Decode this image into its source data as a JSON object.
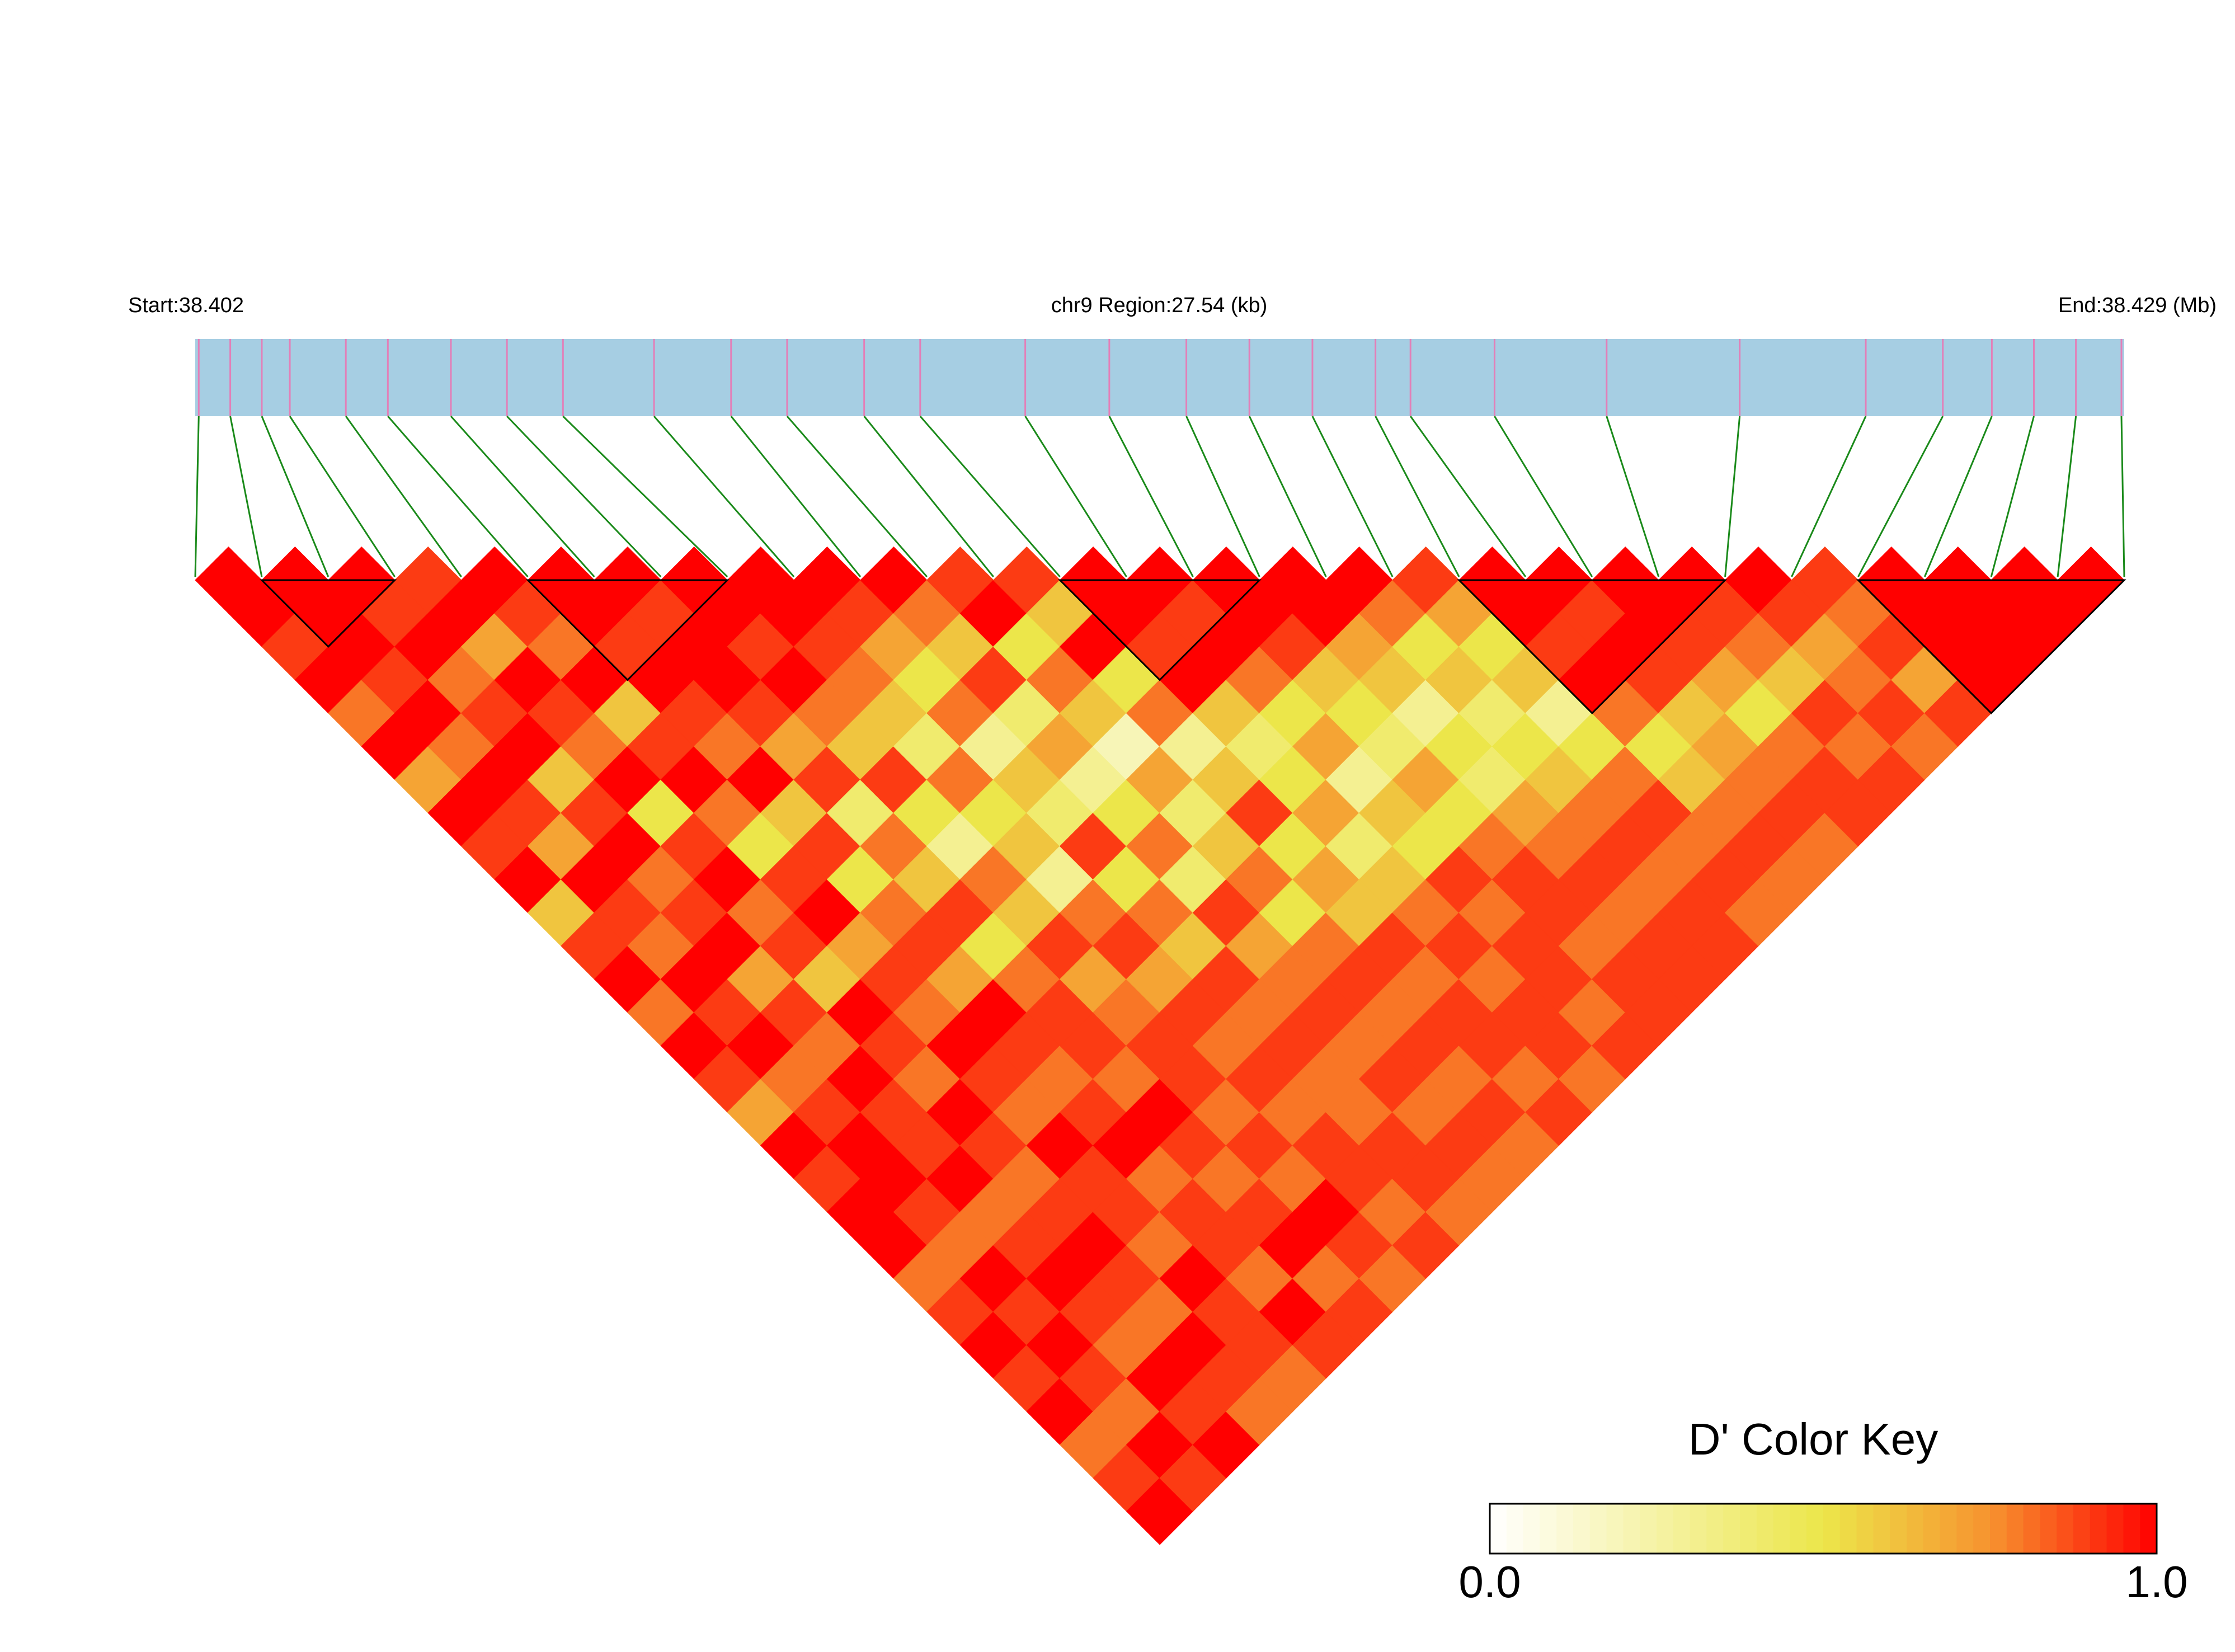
{
  "chart_data": {
    "type": "ld-heatmap",
    "start_label": "Start:38.402",
    "region_label": "chr9 Region:27.54 (kb)",
    "end_label": "End:38.429 (Mb)",
    "key_title": "D' Color Key",
    "xlim": [
      38.40195,
      38.42949
    ],
    "positions": [
      38.402,
      38.40245,
      38.4029,
      38.4033,
      38.4041,
      38.4047,
      38.4056,
      38.4064,
      38.4072,
      38.4085,
      38.4096,
      38.4104,
      38.4115,
      38.4123,
      38.4138,
      38.415,
      38.4161,
      38.417,
      38.4179,
      38.4188,
      38.4193,
      38.4205,
      38.4221,
      38.424,
      38.4258,
      38.4269,
      38.4276,
      38.4282,
      38.4288,
      38.42945
    ],
    "dprime": [
      [
        1,
        1,
        0.9,
        1,
        0.8,
        1,
        0.7,
        1,
        0.9,
        1,
        0.6,
        0.9,
        1,
        0.8,
        1,
        0.9,
        0.7,
        1,
        0.9,
        1,
        1,
        0.8,
        0.9,
        1,
        0.9,
        1,
        0.8,
        0.9,
        1
      ],
      [
        1,
        1,
        1,
        0.9,
        1,
        0.8,
        1,
        0.9,
        0.7,
        1,
        0.9,
        0.8,
        1,
        0.9,
        1,
        0.8,
        0.9,
        1,
        1,
        0.9,
        0.8,
        1,
        0.9,
        1,
        0.9,
        0.8,
        1,
        0.9
      ],
      [
        1,
        0.9,
        1,
        0.8,
        0.9,
        1,
        0.6,
        0.9,
        1,
        0.8,
        0.9,
        1,
        0.7,
        0.9,
        0.8,
        1,
        0.9,
        0.9,
        1,
        0.8,
        0.9,
        1,
        0.9,
        0.8,
        1,
        0.9,
        1
      ],
      [
        0.9,
        1,
        0.7,
        1,
        0.9,
        0.8,
        1,
        0.5,
        0.9,
        1,
        0.8,
        0.9,
        0.6,
        1,
        0.9,
        0.8,
        1,
        0.9,
        0.8,
        0.9,
        1,
        0.9,
        0.8,
        1,
        0.9,
        0.8
      ],
      [
        1,
        0.9,
        0.8,
        1,
        0.6,
        0.9,
        1,
        0.8,
        0.5,
        0.9,
        1,
        0.7,
        0.9,
        0.8,
        1,
        0.9,
        0.8,
        1,
        0.9,
        0.9,
        0.8,
        1,
        0.9,
        0.9,
        0.8
      ],
      [
        1,
        1,
        0.9,
        1,
        0.9,
        0.8,
        1,
        0.6,
        0.9,
        0.5,
        0.8,
        0.9,
        0.7,
        1,
        0.9,
        0.8,
        0.9,
        1,
        0.8,
        0.9,
        0.9,
        0.8,
        1,
        0.9
      ],
      [
        1,
        0.9,
        1,
        1,
        0.9,
        0.7,
        0.9,
        0.4,
        0.8,
        0.6,
        0.9,
        0.5,
        0.8,
        0.9,
        0.9,
        0.8,
        1,
        0.9,
        0.8,
        0.9,
        1,
        0.8,
        0.9
      ],
      [
        1,
        1,
        0.9,
        1,
        0.8,
        0.6,
        0.9,
        0.5,
        0.3,
        0.8,
        0.6,
        0.9,
        0.7,
        0.8,
        0.9,
        0.9,
        0.8,
        0.9,
        0.8,
        1,
        0.9,
        0.8
      ],
      [
        1,
        1,
        0.9,
        0.8,
        0.6,
        0.4,
        0.8,
        0.5,
        0.6,
        0.3,
        0.8,
        0.9,
        0.7,
        0.9,
        0.8,
        0.9,
        0.8,
        0.9,
        0.9,
        0.8,
        0.9
      ],
      [
        1,
        0.9,
        0.7,
        0.5,
        0.8,
        0.3,
        0.6,
        0.4,
        0.9,
        0.5,
        0.8,
        0.6,
        0.9,
        0.8,
        0.9,
        0.8,
        0.8,
        0.9,
        0.9,
        0.8
      ],
      [
        1,
        0.8,
        0.6,
        0.9,
        0.4,
        0.7,
        0.3,
        0.5,
        0.8,
        0.4,
        0.9,
        0.7,
        0.8,
        0.9,
        0.8,
        0.9,
        0.8,
        0.9,
        0.8
      ],
      [
        0.9,
        1,
        0.5,
        0.8,
        0.6,
        0.2,
        0.7,
        0.4,
        0.6,
        0.8,
        0.5,
        0.8,
        0.9,
        0.8,
        0.9,
        0.8,
        0.9,
        0.8
      ],
      [
        0.9,
        0.6,
        1,
        0.5,
        0.8,
        0.3,
        0.6,
        0.9,
        0.5,
        0.7,
        0.6,
        0.9,
        0.8,
        0.9,
        0.9,
        0.8,
        0.9
      ],
      [
        1,
        1,
        0.9,
        1,
        0.6,
        0.4,
        0.5,
        0.7,
        0.4,
        0.6,
        0.8,
        0.9,
        0.8,
        0.9,
        0.9,
        0.8
      ],
      [
        1,
        0.9,
        1,
        0.8,
        0.5,
        0.7,
        0.3,
        0.6,
        0.5,
        0.9,
        0.8,
        0.9,
        0.9,
        0.8,
        0.9
      ],
      [
        1,
        1,
        0.9,
        0.6,
        0.5,
        0.4,
        0.7,
        0.5,
        0.8,
        0.9,
        0.9,
        0.8,
        0.9,
        0.9
      ],
      [
        1,
        1,
        0.7,
        0.6,
        0.3,
        0.5,
        0.4,
        0.7,
        0.8,
        0.9,
        0.8,
        0.9,
        0.9
      ],
      [
        1,
        0.8,
        0.5,
        0.6,
        0.4,
        0.5,
        0.6,
        0.8,
        0.9,
        0.8,
        0.9,
        0.9
      ],
      [
        0.9,
        0.7,
        0.5,
        0.6,
        0.3,
        0.5,
        0.8,
        0.9,
        0.8,
        0.9,
        0.8
      ],
      [
        1,
        1,
        0.9,
        1,
        0.8,
        0.5,
        0.6,
        0.8,
        0.9,
        0.8
      ],
      [
        1,
        0.9,
        1,
        0.9,
        0.6,
        0.7,
        0.8,
        0.9,
        0.8
      ],
      [
        1,
        1,
        0.9,
        0.7,
        0.5,
        0.8,
        0.9,
        0.9
      ],
      [
        1,
        0.9,
        0.8,
        0.6,
        0.9,
        0.8,
        0.9
      ],
      [
        1,
        0.9,
        0.7,
        0.8,
        0.9,
        0.8
      ],
      [
        0.9,
        0.8,
        0.9,
        0.7,
        0.9
      ],
      [
        1,
        1,
        1,
        1
      ],
      [
        1,
        1,
        1
      ],
      [
        1,
        1
      ],
      [
        1
      ]
    ],
    "blocks": [
      [
        1,
        3
      ],
      [
        5,
        8
      ],
      [
        13,
        16
      ],
      [
        19,
        23
      ],
      [
        25,
        29
      ]
    ],
    "bar_color": "#a6cee3",
    "snp_color": "#e37fb8",
    "connector_color": "#1a8a1a",
    "block_color": "#000000",
    "color_stops": [
      {
        "value": 0,
        "color": "#ffffff"
      },
      {
        "value": 0.5,
        "color": "#ece64a"
      },
      {
        "value": 0.75,
        "color": "#f7932f"
      },
      {
        "value": 1,
        "color": "#ff0000"
      }
    ],
    "key_lim": [
      0,
      1
    ],
    "key_ticks": [
      {
        "value": 0,
        "label": "0.0"
      },
      {
        "value": 1,
        "label": "1.0"
      }
    ]
  }
}
